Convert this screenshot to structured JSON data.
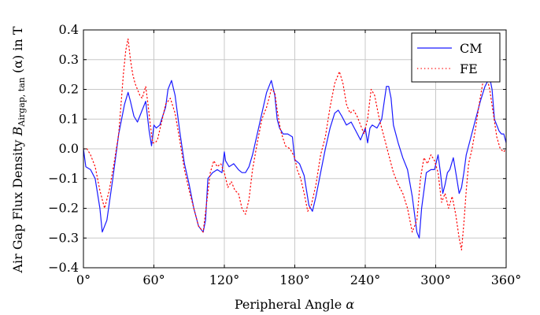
{
  "chart_data": {
    "type": "line",
    "xlabel": "Peripheral Angle α",
    "ylabel": "Air Gap Flux Density B_Airgap,tan (α) in T",
    "ylabel_main": "Air Gap Flux Density ",
    "ylabel_symbol": "B",
    "ylabel_sub": "Airgap, tan",
    "ylabel_tail": " (α) in T",
    "xlim": [
      0,
      360
    ],
    "ylim": [
      -0.4,
      0.4
    ],
    "grid": true,
    "legend_position": "top-right",
    "x_ticks": [
      0,
      60,
      120,
      180,
      240,
      300,
      360
    ],
    "x_tick_labels": [
      "0°",
      "60°",
      "120°",
      "180°",
      "240°",
      "300°",
      "360°"
    ],
    "y_ticks": [
      -0.4,
      -0.3,
      -0.2,
      -0.1,
      0.0,
      0.1,
      0.2,
      0.3,
      0.4
    ],
    "y_tick_labels": [
      "−0.4",
      "−0.3",
      "−0.2",
      "−0.1",
      "0.0",
      "0.1",
      "0.2",
      "0.3",
      "0.4"
    ],
    "series": [
      {
        "name": "CM",
        "color": "#1a1aff",
        "style": "solid",
        "x": [
          0,
          2,
          6,
          10,
          14,
          16,
          20,
          25,
          30,
          35,
          38,
          40,
          43,
          46,
          50,
          53,
          56,
          58,
          60,
          62,
          65,
          70,
          72,
          75,
          78,
          82,
          86,
          90,
          94,
          98,
          102,
          104,
          106,
          110,
          114,
          118,
          120,
          121,
          124,
          128,
          132,
          135,
          138,
          141,
          144,
          148,
          152,
          156,
          160,
          163,
          165,
          167,
          170,
          174,
          178,
          180,
          181,
          184,
          188,
          192,
          195,
          198,
          202,
          206,
          210,
          214,
          217,
          220,
          224,
          228,
          232,
          236,
          240,
          242,
          244,
          246,
          250,
          254,
          258,
          260,
          262,
          264,
          268,
          272,
          276,
          280,
          284,
          286,
          288,
          292,
          296,
          299,
          302,
          304,
          306,
          308,
          310,
          312,
          315,
          318,
          320,
          322,
          324,
          326,
          330,
          334,
          338,
          342,
          346,
          348,
          350,
          354,
          356,
          358,
          360
        ],
        "y": [
          0.0,
          -0.06,
          -0.07,
          -0.1,
          -0.2,
          -0.28,
          -0.24,
          -0.1,
          0.05,
          0.15,
          0.19,
          0.16,
          0.11,
          0.09,
          0.13,
          0.16,
          0.06,
          0.01,
          0.08,
          0.07,
          0.08,
          0.14,
          0.2,
          0.23,
          0.18,
          0.06,
          -0.05,
          -0.12,
          -0.2,
          -0.26,
          -0.28,
          -0.24,
          -0.1,
          -0.08,
          -0.07,
          -0.08,
          -0.01,
          -0.04,
          -0.06,
          -0.05,
          -0.07,
          -0.08,
          -0.08,
          -0.06,
          -0.02,
          0.05,
          0.12,
          0.19,
          0.23,
          0.18,
          0.1,
          0.07,
          0.05,
          0.05,
          0.04,
          -0.04,
          -0.04,
          -0.05,
          -0.09,
          -0.19,
          -0.21,
          -0.16,
          -0.08,
          0.0,
          0.07,
          0.12,
          0.13,
          0.11,
          0.08,
          0.09,
          0.06,
          0.03,
          0.07,
          0.02,
          0.07,
          0.08,
          0.07,
          0.1,
          0.21,
          0.21,
          0.17,
          0.08,
          0.02,
          -0.03,
          -0.07,
          -0.16,
          -0.28,
          -0.3,
          -0.2,
          -0.08,
          -0.07,
          -0.07,
          -0.02,
          -0.08,
          -0.15,
          -0.12,
          -0.08,
          -0.07,
          -0.03,
          -0.1,
          -0.15,
          -0.13,
          -0.08,
          -0.02,
          0.04,
          0.1,
          0.16,
          0.21,
          0.24,
          0.2,
          0.1,
          0.06,
          0.05,
          0.05,
          0.02
        ]
      },
      {
        "name": "FE",
        "color": "#ff0000",
        "style": "dotted",
        "x": [
          0,
          3,
          6,
          10,
          14,
          18,
          22,
          26,
          30,
          34,
          36,
          38,
          40,
          42,
          44,
          46,
          48,
          50,
          53,
          55,
          57,
          59,
          61,
          63,
          66,
          70,
          74,
          78,
          82,
          86,
          90,
          94,
          98,
          102,
          105,
          108,
          111,
          114,
          117,
          120,
          123,
          126,
          129,
          132,
          135,
          138,
          141,
          144,
          148,
          152,
          156,
          160,
          163,
          165,
          168,
          172,
          176,
          180,
          182,
          185,
          188,
          191,
          194,
          198,
          202,
          206,
          210,
          214,
          218,
          221,
          224,
          227,
          230,
          233,
          236,
          239,
          242,
          245,
          248,
          252,
          256,
          260,
          264,
          268,
          272,
          276,
          280,
          284,
          287,
          290,
          293,
          296,
          299,
          302,
          305,
          308,
          311,
          314,
          317,
          320,
          322,
          324,
          326,
          328,
          331,
          334,
          337,
          340,
          343,
          346,
          349,
          352,
          355,
          358,
          360
        ],
        "y": [
          0.0,
          0.0,
          -0.02,
          -0.06,
          -0.14,
          -0.2,
          -0.14,
          -0.05,
          0.05,
          0.25,
          0.33,
          0.37,
          0.3,
          0.25,
          0.22,
          0.2,
          0.18,
          0.17,
          0.21,
          0.15,
          0.08,
          0.02,
          0.02,
          0.03,
          0.08,
          0.15,
          0.17,
          0.12,
          0.03,
          -0.07,
          -0.14,
          -0.2,
          -0.26,
          -0.28,
          -0.18,
          -0.08,
          -0.04,
          -0.06,
          -0.05,
          -0.08,
          -0.13,
          -0.11,
          -0.14,
          -0.15,
          -0.2,
          -0.22,
          -0.17,
          -0.07,
          0.02,
          0.1,
          0.14,
          0.2,
          0.19,
          0.13,
          0.06,
          0.01,
          0.0,
          -0.03,
          -0.07,
          -0.1,
          -0.15,
          -0.21,
          -0.19,
          -0.12,
          -0.02,
          0.04,
          0.14,
          0.22,
          0.26,
          0.22,
          0.15,
          0.12,
          0.13,
          0.11,
          0.08,
          0.05,
          0.1,
          0.2,
          0.18,
          0.1,
          0.04,
          -0.02,
          -0.08,
          -0.12,
          -0.15,
          -0.2,
          -0.28,
          -0.24,
          -0.1,
          -0.03,
          -0.05,
          -0.02,
          -0.04,
          -0.08,
          -0.18,
          -0.15,
          -0.2,
          -0.16,
          -0.22,
          -0.3,
          -0.34,
          -0.25,
          -0.14,
          -0.05,
          0.0,
          0.07,
          0.15,
          0.22,
          0.25,
          0.2,
          0.12,
          0.04,
          0.0,
          -0.01,
          0.0
        ]
      }
    ]
  }
}
